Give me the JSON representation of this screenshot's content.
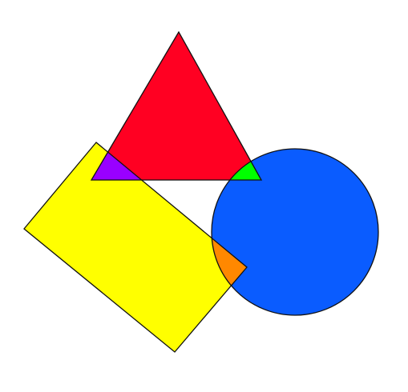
{
  "colors": {
    "background": "#ffffff",
    "triangle": "#ff0022",
    "rectangle": "#ffff00",
    "circle": "#0a5cff",
    "triangle_rectangle_overlap": "#9900ff",
    "triangle_circle_overlap": "#00ff00",
    "rectangle_circle_overlap": "#ff8800",
    "all_overlap": "#000000",
    "outline": "#111111"
  },
  "shapes": {
    "triangle": {
      "kind": "triangle",
      "color_name": "red"
    },
    "rectangle": {
      "kind": "rectangle",
      "color_name": "yellow"
    },
    "circle": {
      "kind": "circle",
      "color_name": "blue"
    }
  }
}
